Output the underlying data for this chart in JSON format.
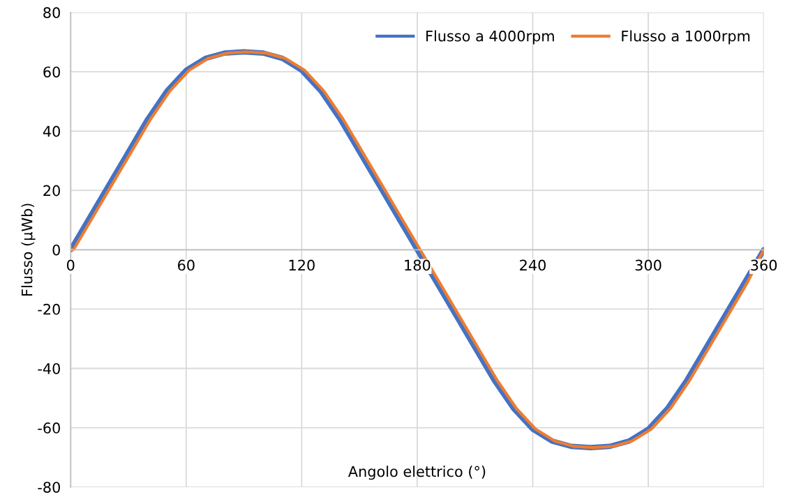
{
  "chart_data": {
    "type": "line",
    "xlabel": "Angolo elettrico (°)",
    "ylabel": "Flusso (µWb)",
    "xlim": [
      0,
      360
    ],
    "xticks": [
      0,
      60,
      120,
      180,
      240,
      300,
      360
    ],
    "ylim": [
      -80,
      80
    ],
    "yticks": [
      -80,
      -60,
      -40,
      -20,
      0,
      20,
      40,
      60,
      80
    ],
    "grid": true,
    "legend": "top right",
    "marker": "none",
    "line_style": "solid",
    "series": [
      {
        "name": "Flusso a 4000rpm",
        "color": "#4472c4",
        "x": [
          0,
          10,
          20,
          30,
          40,
          50,
          60,
          70,
          80,
          90,
          100,
          110,
          120,
          130,
          140,
          150,
          160,
          170,
          180,
          190,
          200,
          210,
          220,
          230,
          240,
          250,
          260,
          270,
          280,
          290,
          300,
          310,
          320,
          330,
          340,
          350,
          360
        ],
        "values": [
          0,
          11,
          22,
          33,
          44,
          53.5,
          60.5,
          64.5,
          66.3,
          66.7,
          66.3,
          64.5,
          60.5,
          53.5,
          44,
          33,
          22,
          11,
          0,
          -11,
          -22,
          -33,
          -44,
          -53.5,
          -60.5,
          -64.5,
          -66.3,
          -66.7,
          -66.3,
          -64.5,
          -60.5,
          -53.5,
          -44,
          -33,
          -22,
          -11,
          0
        ]
      },
      {
        "name": "Flusso a 1000rpm",
        "color": "#ed7d31",
        "x": [
          0,
          1.5,
          11.5,
          21.5,
          31.5,
          41.5,
          51.5,
          61.5,
          71.5,
          81.5,
          91.5,
          101.5,
          111.5,
          121.5,
          131.5,
          141.5,
          151.5,
          161.5,
          171.5,
          181.5,
          191.5,
          201.5,
          211.5,
          221.5,
          231.5,
          241.5,
          251.5,
          261.5,
          271.5,
          281.5,
          291.5,
          301.5,
          311.5,
          321.5,
          331.5,
          341.5,
          351.5,
          360
        ],
        "values": [
          0,
          0,
          11,
          22,
          33,
          44,
          53.5,
          60.5,
          64.5,
          66.3,
          66.7,
          66.3,
          64.5,
          60.5,
          53.5,
          44,
          33,
          22,
          11,
          0,
          -11,
          -22,
          -33,
          -44,
          -53.5,
          -60.5,
          -64.5,
          -66.3,
          -66.7,
          -66.3,
          -64.5,
          -60.5,
          -53.5,
          -44,
          -33,
          -22,
          -11,
          0
        ]
      }
    ]
  }
}
